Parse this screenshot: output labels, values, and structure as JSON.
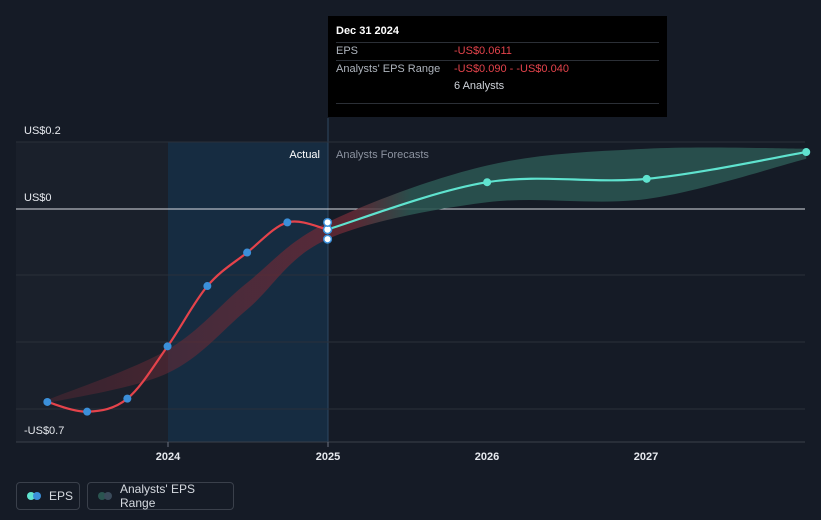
{
  "chart_data": {
    "type": "line",
    "y_axis_labels": [
      "US$0.2",
      "US$0",
      "-US$0.7"
    ],
    "x_tick_labels": [
      "2024",
      "2025",
      "2026",
      "2027"
    ],
    "ylim": [
      -0.7,
      0.2
    ],
    "region_labels": {
      "actual": "Actual",
      "forecast": "Analysts Forecasts"
    },
    "series": [
      {
        "name": "EPS",
        "color": "#e4434b",
        "points": [
          {
            "date": "2023-03-31",
            "value": -0.576
          },
          {
            "date": "2023-06-30",
            "value": -0.605
          },
          {
            "date": "2023-09-30",
            "value": -0.566
          },
          {
            "date": "2023-12-31",
            "value": -0.41
          },
          {
            "date": "2024-03-31",
            "value": -0.23
          },
          {
            "date": "2024-06-30",
            "value": -0.13
          },
          {
            "date": "2024-09-30",
            "value": -0.04
          },
          {
            "date": "2024-12-31",
            "value": -0.0611
          }
        ]
      },
      {
        "name": "EPS Forecast",
        "color": "#5fe3cf",
        "points": [
          {
            "date": "2024-12-31",
            "value": -0.0611
          },
          {
            "date": "2025-12-31",
            "value": 0.08
          },
          {
            "date": "2026-12-31",
            "value": 0.09
          },
          {
            "date": "2027-12-31",
            "value": 0.17
          }
        ]
      }
    ],
    "range": {
      "name": "Analysts' EPS Range",
      "points": [
        {
          "date": "2023-03-31",
          "low": -0.58,
          "high": -0.57
        },
        {
          "date": "2023-12-31",
          "low": -0.49,
          "high": -0.42
        },
        {
          "date": "2024-06-30",
          "low": -0.3,
          "high": -0.22
        },
        {
          "date": "2024-12-31",
          "low": -0.09,
          "high": -0.04
        },
        {
          "date": "2025-12-31",
          "low": 0.02,
          "high": 0.13
        },
        {
          "date": "2026-12-31",
          "low": 0.03,
          "high": 0.18
        },
        {
          "date": "2027-12-31",
          "low": 0.15,
          "high": 0.18
        }
      ]
    },
    "tooltip": {
      "date": "Dec 31 2024",
      "eps_label": "EPS",
      "eps_value": "-US$0.0611",
      "range_label": "Analysts' EPS Range",
      "range_value": "-US$0.090 - -US$0.040",
      "analysts": "6 Analysts"
    },
    "grid": true
  },
  "legend": {
    "eps_label": "EPS",
    "range_label": "Analysts' EPS Range"
  },
  "colors": {
    "background": "#151b26",
    "eps": "#e4434b",
    "eps_dot": "#3b8fd9",
    "forecast": "#5fe3cf",
    "range_fill": "#2a5450"
  }
}
